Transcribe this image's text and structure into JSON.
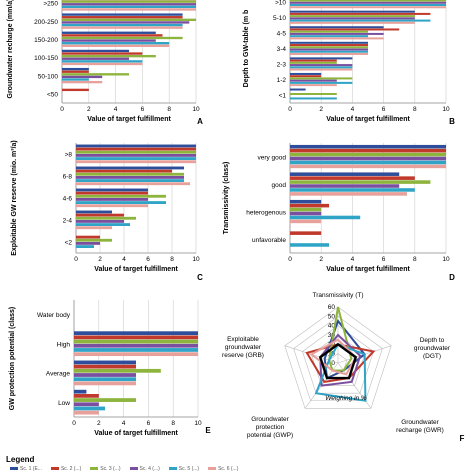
{
  "colors": [
    "#2E4D9A",
    "#C0392B",
    "#8DB43C",
    "#7B4FA0",
    "#2FA4C6",
    "#E8A09A"
  ],
  "legend": {
    "title": "Legend",
    "items": [
      "Sc. 1 (E...",
      "Sc. 2 (...)",
      "Sc. 3 (...)",
      "Sc. 4 (...)",
      "Sc. 5 (...)",
      "Sc. 6 (...)"
    ]
  },
  "chart_data": [
    {
      "type": "bar",
      "panel": "A",
      "ylabel": "Groundwater recharge (mm/a)",
      "xlabel": "Value of target fulfillment",
      "xlim": [
        0,
        10
      ],
      "xticks": [
        "0",
        "2",
        "4",
        "6",
        "8",
        "10"
      ],
      "categories": [
        ">250",
        "200-250",
        "150-200",
        "100-150",
        "50-100",
        "<50"
      ],
      "series": [
        {
          "values": [
            10,
            9,
            7,
            5,
            2,
            0
          ]
        },
        {
          "values": [
            10,
            9,
            7.5,
            6,
            2,
            2
          ]
        },
        {
          "values": [
            10,
            10,
            9,
            7,
            5,
            0
          ]
        },
        {
          "values": [
            10,
            9.5,
            7,
            5,
            3,
            0
          ]
        },
        {
          "values": [
            10,
            9,
            8,
            6,
            2,
            0
          ]
        },
        {
          "values": [
            10,
            9,
            8,
            6,
            3,
            0
          ]
        }
      ]
    },
    {
      "type": "bar",
      "panel": "B",
      "ylabel": "Depth to GW-table (m b",
      "xlabel": "Value of target fulfillment",
      "xlim": [
        0,
        10
      ],
      "xticks": [
        "0",
        "2",
        "4",
        "6",
        "8",
        "10"
      ],
      "categories": [
        ">10",
        "5-10",
        "4-5",
        "3-4",
        "2-3",
        "1-2",
        "<1"
      ],
      "series": [
        {
          "values": [
            10,
            8,
            6,
            5,
            4,
            2,
            1
          ]
        },
        {
          "values": [
            10,
            9,
            7,
            5,
            3,
            2,
            0
          ]
        },
        {
          "values": [
            10,
            8,
            5,
            5,
            3,
            4,
            3
          ]
        },
        {
          "values": [
            10,
            8,
            6,
            5,
            4,
            3,
            0
          ]
        },
        {
          "values": [
            10,
            9,
            5,
            5,
            4,
            4,
            3
          ]
        },
        {
          "values": [
            10,
            8,
            6,
            5,
            4,
            3,
            0
          ]
        }
      ]
    },
    {
      "type": "bar",
      "panel": "C",
      "ylabel": "Exploitable GW reserve (mio. m³/a)",
      "xlabel": "Value of target fulfillment",
      "xlim": [
        0,
        10
      ],
      "xticks": [
        "0",
        "2",
        "4",
        "6",
        "8",
        "10"
      ],
      "categories": [
        ">8",
        "6-8",
        "4-6",
        "2-4",
        "<2"
      ],
      "series": [
        {
          "values": [
            10,
            9,
            6,
            3,
            0
          ]
        },
        {
          "values": [
            10,
            8,
            6,
            4,
            2
          ]
        },
        {
          "values": [
            10,
            9,
            7.5,
            5,
            3
          ]
        },
        {
          "values": [
            10,
            9,
            6,
            4,
            2
          ]
        },
        {
          "values": [
            10,
            9,
            7.5,
            4.5,
            1.5
          ]
        },
        {
          "values": [
            10,
            9.5,
            6,
            3,
            0
          ]
        }
      ]
    },
    {
      "type": "bar",
      "panel": "D",
      "ylabel": "Transmissivity (class)",
      "xlabel": "Value of target fulfillment",
      "xlim": [
        0,
        10
      ],
      "xticks": [
        "0",
        "2",
        "4",
        "6",
        "8",
        "10"
      ],
      "categories": [
        "very good",
        "good",
        "heterogenous",
        "unfavorable"
      ],
      "series": [
        {
          "values": [
            10,
            7,
            2,
            0
          ]
        },
        {
          "values": [
            10,
            8,
            2.5,
            2
          ]
        },
        {
          "values": [
            10,
            9,
            2,
            0
          ]
        },
        {
          "values": [
            10,
            7,
            2,
            0
          ]
        },
        {
          "values": [
            10,
            8,
            4.5,
            2.5
          ]
        },
        {
          "values": [
            10,
            7.5,
            2,
            0
          ]
        }
      ]
    },
    {
      "type": "bar",
      "panel": "E",
      "ylabel": "GW protection potential (class)",
      "xlabel": "Value of target fulfillment",
      "xlim": [
        0,
        10
      ],
      "xticks": [
        "0",
        "2",
        "4",
        "6",
        "8",
        "10"
      ],
      "categories": [
        "Water body",
        "High",
        "Average",
        "Low"
      ],
      "series": [
        {
          "values": [
            0,
            10,
            5,
            1
          ]
        },
        {
          "values": [
            0,
            10,
            5,
            2
          ]
        },
        {
          "values": [
            0,
            10,
            7,
            5
          ]
        },
        {
          "values": [
            0,
            10,
            5,
            2
          ]
        },
        {
          "values": [
            0,
            10,
            5,
            2.5
          ]
        },
        {
          "values": [
            0,
            10,
            5,
            2
          ]
        }
      ]
    },
    {
      "type": "radar",
      "panel": "F",
      "axes": [
        "Transmissivity (T)",
        "Depth to groundwater (DGT)",
        "Groundwater recharge (GWR)",
        "Groundwater protection potential (GWP)",
        "Exploitable groundwater reserve (GRB)"
      ],
      "rlim": [
        0,
        60
      ],
      "rticks": [
        "0",
        "10",
        "20",
        "30",
        "40",
        "50",
        "60"
      ],
      "rlabel": "Weighing in %",
      "series": [
        {
          "values": [
            45,
            30,
            10,
            20,
            15
          ]
        },
        {
          "values": [
            20,
            40,
            20,
            25,
            35
          ]
        },
        {
          "values": [
            60,
            15,
            10,
            10,
            10
          ]
        },
        {
          "values": [
            30,
            25,
            25,
            30,
            20
          ]
        },
        {
          "values": [
            20,
            30,
            50,
            40,
            10
          ]
        },
        {
          "values": [
            25,
            20,
            15,
            10,
            30
          ]
        },
        {
          "values": [
            20,
            20,
            20,
            20,
            20
          ]
        }
      ],
      "series_colors": [
        "#2E4D9A",
        "#C0392B",
        "#8DB43C",
        "#7B4FA0",
        "#2FA4C6",
        "#E8A09A",
        "#000000"
      ]
    }
  ]
}
